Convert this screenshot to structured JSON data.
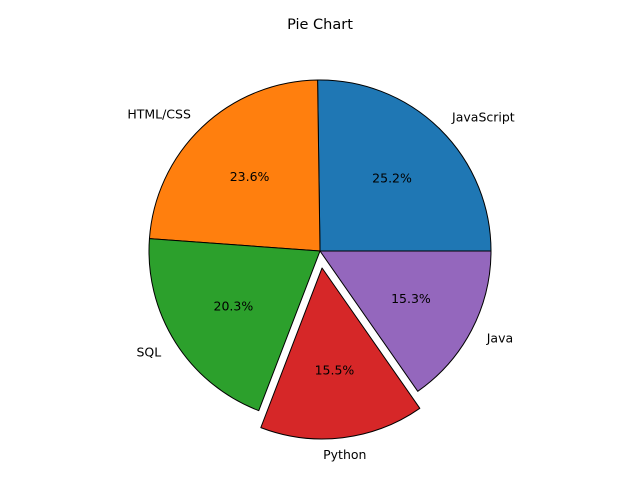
{
  "chart_data": {
    "type": "pie",
    "title": "Pie Chart",
    "labels": [
      "JavaScript",
      "HTML/CSS",
      "SQL",
      "Python",
      "Java"
    ],
    "values": [
      25.2,
      23.6,
      20.3,
      15.5,
      15.3
    ],
    "percent_labels": [
      "25.2%",
      "23.6%",
      "20.3%",
      "15.5%",
      "15.3%"
    ],
    "colors": [
      "#1f77b4",
      "#ff7f0e",
      "#2ca02c",
      "#d62728",
      "#9467bd"
    ],
    "explode": [
      0,
      0,
      0,
      0.1,
      0
    ],
    "start_angle_deg": 0,
    "direction": "counterclockwise",
    "edge_color": "#000000",
    "legend": "none"
  }
}
